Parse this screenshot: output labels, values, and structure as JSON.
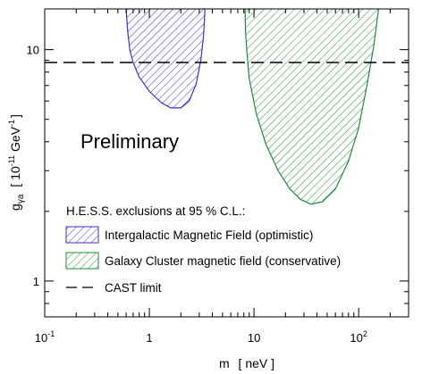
{
  "chart_data": {
    "type": "area",
    "x_scale": "log",
    "y_scale": "log",
    "xlim": [
      0.1,
      300
    ],
    "ylim": [
      0.7,
      15
    ],
    "xlabel_main": "m",
    "xlabel_unit": "[ neV ]",
    "ylabel_symbol": "g",
    "ylabel_subscript": "γa",
    "ylabel_unit_prefix": "[ 10",
    "ylabel_unit_exp": "-11",
    "ylabel_unit_mid": " GeV",
    "ylabel_unit_exp2": "-1",
    "ylabel_unit_suffix": "]",
    "x_tick_labels": [
      {
        "value": 0.1,
        "base": "10",
        "exp": "-1"
      },
      {
        "value": 1,
        "base": "1",
        "exp": ""
      },
      {
        "value": 10,
        "base": "10",
        "exp": ""
      },
      {
        "value": 100,
        "base": "10",
        "exp": "2"
      }
    ],
    "y_tick_labels": [
      {
        "value": 1,
        "text": "1"
      },
      {
        "value": 10,
        "text": "10"
      }
    ],
    "annotation": "Preliminary",
    "legend_title": "H.E.S.S. exclusions at 95 % C.L.:",
    "legend_placement": "bottom-left",
    "series": [
      {
        "name": "Intergalactic Magnetic Field (optimistic)",
        "kind": "hatched-region",
        "color": "#3b2fd6",
        "boundary": [
          [
            0.6,
            15
          ],
          [
            0.62,
            12
          ],
          [
            0.65,
            10
          ],
          [
            0.7,
            8.8
          ],
          [
            0.8,
            7.6
          ],
          [
            1.0,
            6.6
          ],
          [
            1.3,
            5.9
          ],
          [
            1.6,
            5.6
          ],
          [
            2.0,
            5.6
          ],
          [
            2.4,
            6.0
          ],
          [
            2.8,
            7.1
          ],
          [
            3.1,
            9.0
          ],
          [
            3.3,
            11.5
          ],
          [
            3.4,
            15
          ]
        ]
      },
      {
        "name": "Galaxy Cluster magnetic field (conservative)",
        "kind": "hatched-region",
        "color": "#1f8c3c",
        "boundary": [
          [
            8.2,
            15
          ],
          [
            8.3,
            12
          ],
          [
            8.6,
            9.5
          ],
          [
            9.0,
            7.5
          ],
          [
            10.5,
            5.3
          ],
          [
            13,
            3.9
          ],
          [
            17,
            3.0
          ],
          [
            22,
            2.5
          ],
          [
            28,
            2.25
          ],
          [
            35,
            2.15
          ],
          [
            45,
            2.2
          ],
          [
            60,
            2.5
          ],
          [
            80,
            3.3
          ],
          [
            100,
            4.6
          ],
          [
            120,
            7.0
          ],
          [
            140,
            10.5
          ],
          [
            155,
            15
          ]
        ]
      },
      {
        "name": "CAST limit",
        "kind": "dashed-line",
        "color": "#000000",
        "x": [
          0.1,
          300
        ],
        "y": [
          8.8,
          8.8
        ]
      }
    ],
    "grid": false
  }
}
